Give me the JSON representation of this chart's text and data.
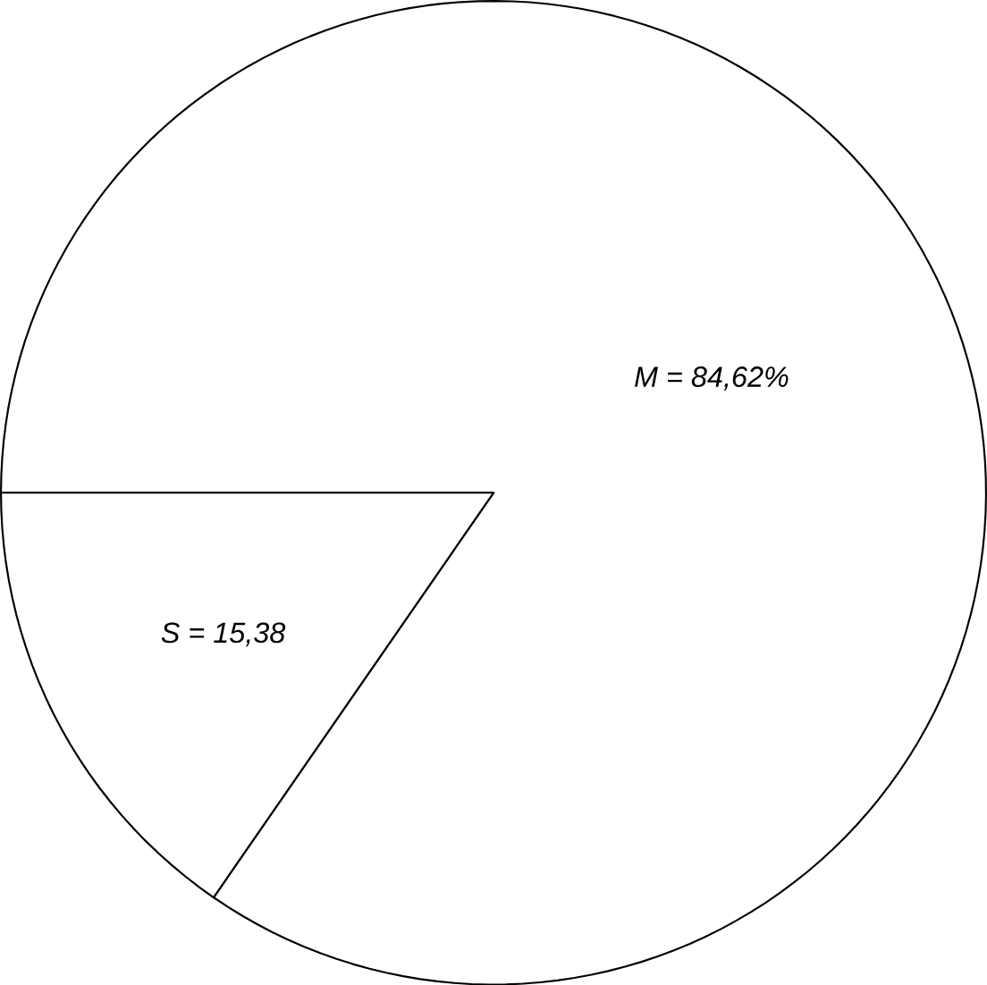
{
  "chart_data": {
    "type": "pie",
    "categories": [
      "M = 84,62%",
      "S = 15,38"
    ],
    "values": [
      84.62,
      15.38
    ],
    "colors": [
      "#ffffff",
      "#ffffff"
    ]
  }
}
